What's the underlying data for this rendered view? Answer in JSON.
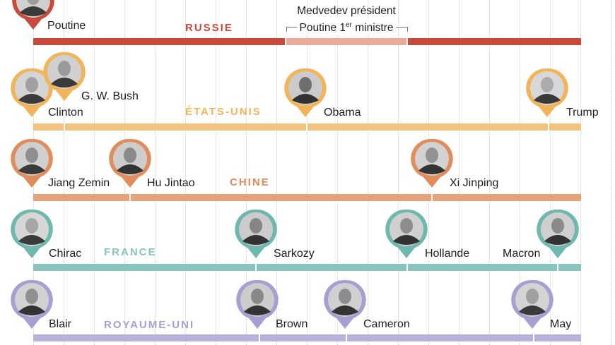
{
  "colors": {
    "russia": "#c9493a",
    "russia_light": "#e9ab98",
    "usa": "#f3c27c",
    "usa_pin": "#f2b459",
    "china": "#e8a27a",
    "china_pin": "#e08c5b",
    "france": "#87c4bb",
    "france_pin": "#6fb8ad",
    "uk": "#b8b3dc",
    "uk_pin": "#a59fd2"
  },
  "rows": {
    "russia": {
      "label": "RUSSIE",
      "leaders": {
        "putin": "Poutine"
      },
      "note": {
        "line1": "Medvedev président",
        "line2_pre": "Poutine 1",
        "line2_sup": "er",
        "line2_post": " ministre"
      }
    },
    "usa": {
      "label": "ÉTATS-UNIS",
      "leaders": {
        "clinton": "Clinton",
        "bush": "G. W. Bush",
        "obama": "Obama",
        "trump": "Trump"
      }
    },
    "china": {
      "label": "CHINE",
      "leaders": {
        "jiang": "Jiang Zemin",
        "hu": "Hu Jintao",
        "xi": "Xi Jinping"
      }
    },
    "france": {
      "label": "FRANCE",
      "leaders": {
        "chirac": "Chirac",
        "sarkozy": "Sarkozy",
        "hollande": "Hollande",
        "macron": "Macron"
      }
    },
    "uk": {
      "label": "ROYAUME-UNI",
      "leaders": {
        "blair": "Blair",
        "brown": "Brown",
        "cameron": "Cameron",
        "may": "May"
      }
    }
  }
}
